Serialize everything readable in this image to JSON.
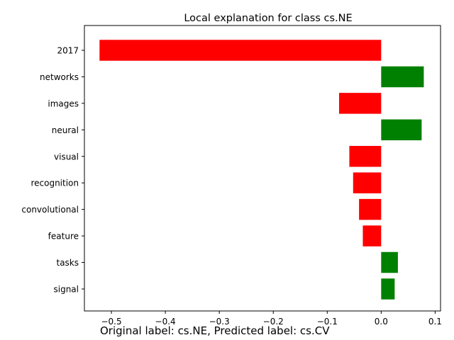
{
  "chart_data": {
    "type": "bar",
    "orientation": "horizontal",
    "title": "Local explanation for class cs.NE",
    "categories": [
      "2017",
      "networks",
      "images",
      "neural",
      "visual",
      "recognition",
      "convolutional",
      "feature",
      "tasks",
      "signal"
    ],
    "values": [
      -0.522,
      0.079,
      -0.078,
      0.075,
      -0.059,
      -0.052,
      -0.041,
      -0.034,
      0.031,
      0.025
    ],
    "xlim": [
      -0.55,
      0.11
    ],
    "xticks": [
      -0.5,
      -0.4,
      -0.3,
      -0.2,
      -0.1,
      0.0,
      0.1
    ],
    "xtick_labels": [
      "−0.5",
      "−0.4",
      "−0.3",
      "−0.2",
      "−0.1",
      "0.0",
      "0.1"
    ],
    "grid": false,
    "colors": {
      "positive": "#008000",
      "negative": "#ff0000"
    }
  },
  "caption": "Original label: cs.NE, Predicted label: cs.CV"
}
